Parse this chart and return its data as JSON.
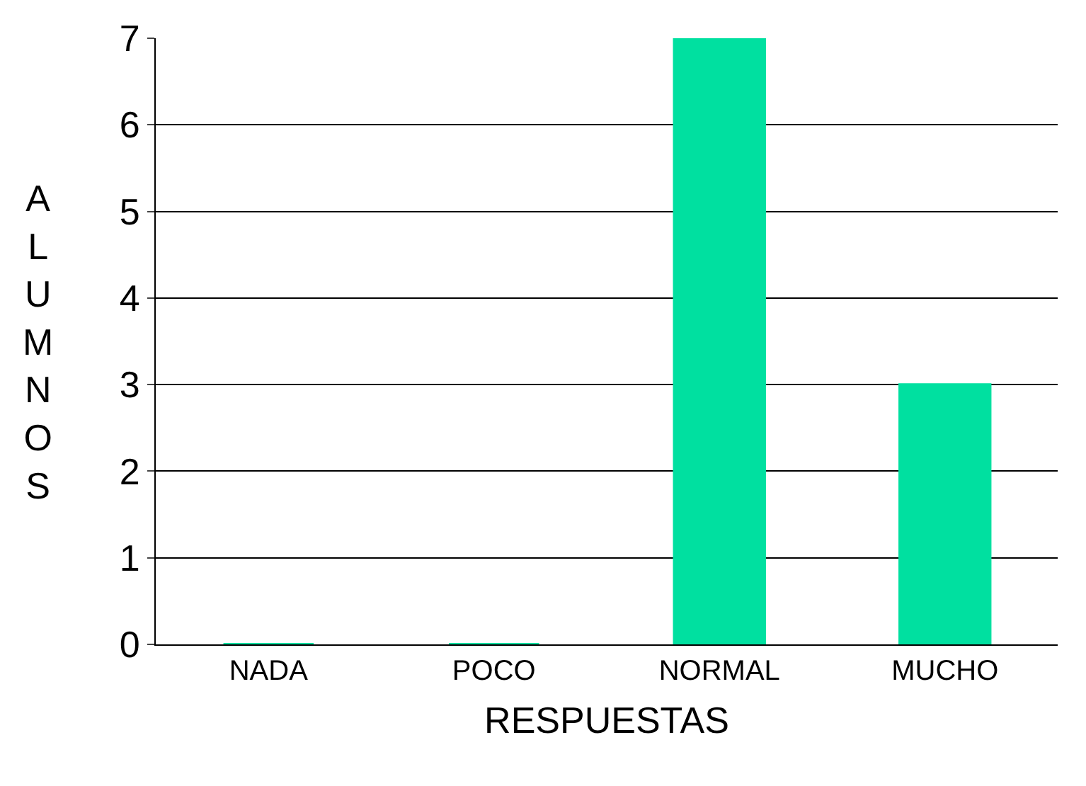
{
  "chart_data": {
    "type": "bar",
    "xlabel": "RESPUESTAS",
    "ylabel": "ALUMNOS",
    "categories": [
      "NADA",
      "POCO",
      "NORMAL",
      "MUCHO"
    ],
    "values": [
      0,
      0,
      7,
      3
    ],
    "color": "#00e0a0",
    "ylim": [
      0,
      7
    ],
    "yticks": [
      0,
      1,
      2,
      3,
      4,
      5,
      6,
      7
    ],
    "grid": "y"
  }
}
